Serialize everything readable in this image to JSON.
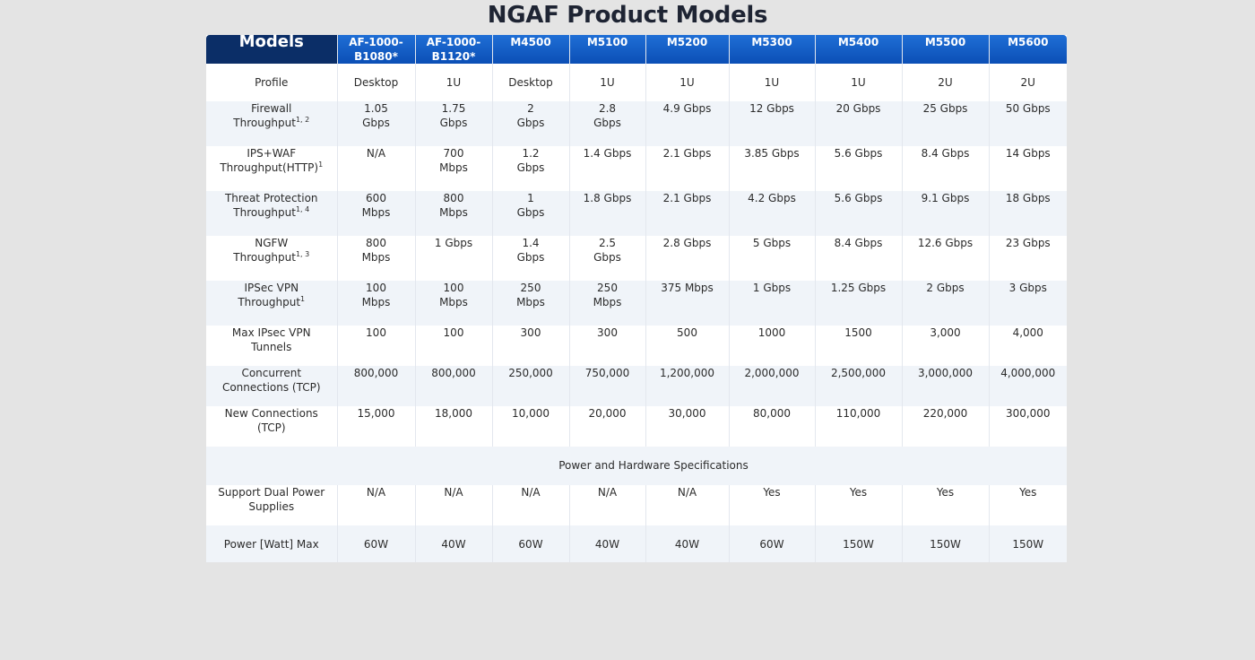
{
  "title": "NGAF Product Models",
  "table": {
    "header_label": "Models",
    "models": [
      [
        "AF-1000-",
        "B1080*"
      ],
      [
        "AF-1000-",
        "B1120*"
      ],
      [
        "M4500"
      ],
      [
        "M5100"
      ],
      [
        "M5200"
      ],
      [
        "M5300"
      ],
      [
        "M5400"
      ],
      [
        "M5500"
      ],
      [
        "M5600"
      ]
    ],
    "rows": {
      "profile": {
        "label": "Profile",
        "values": [
          "Desktop",
          "1U",
          "Desktop",
          "1U",
          "1U",
          "1U",
          "1U",
          "2U",
          "2U"
        ]
      },
      "firewall": {
        "label1": "Firewall",
        "label2": "Throughput",
        "sup": "1, 2",
        "values": [
          [
            "1.05",
            "Gbps"
          ],
          [
            "1.75",
            "Gbps"
          ],
          [
            "2",
            "Gbps"
          ],
          [
            "2.8",
            "Gbps"
          ],
          [
            "4.9 Gbps"
          ],
          [
            "12 Gbps"
          ],
          [
            "20 Gbps"
          ],
          [
            "25 Gbps"
          ],
          [
            "50 Gbps"
          ]
        ]
      },
      "ips_waf": {
        "label1": "IPS+WAF",
        "label2": "Throughput(HTTP)",
        "sup": "1",
        "values": [
          [
            "N/A"
          ],
          [
            "700",
            "Mbps"
          ],
          [
            "1.2",
            "Gbps"
          ],
          [
            "1.4 Gbps"
          ],
          [
            "2.1 Gbps"
          ],
          [
            "3.85 Gbps"
          ],
          [
            "5.6 Gbps"
          ],
          [
            "8.4 Gbps"
          ],
          [
            "14 Gbps"
          ]
        ]
      },
      "threat": {
        "label1": "Threat Protection",
        "label2": "Throughput",
        "sup": "1, 4",
        "values": [
          [
            "600",
            "Mbps"
          ],
          [
            "800",
            "Mbps"
          ],
          [
            "1",
            "Gbps"
          ],
          [
            "1.8 Gbps"
          ],
          [
            "2.1 Gbps"
          ],
          [
            "4.2 Gbps"
          ],
          [
            "5.6 Gbps"
          ],
          [
            "9.1 Gbps"
          ],
          [
            "18 Gbps"
          ]
        ]
      },
      "ngfw": {
        "label1": "NGFW",
        "label2": "Throughput",
        "sup": "1, 3",
        "values": [
          [
            "800",
            "Mbps"
          ],
          [
            "1 Gbps"
          ],
          [
            "1.4",
            "Gbps"
          ],
          [
            "2.5",
            "Gbps"
          ],
          [
            "2.8 Gbps"
          ],
          [
            "5 Gbps"
          ],
          [
            "8.4 Gbps"
          ],
          [
            "12.6 Gbps"
          ],
          [
            "23 Gbps"
          ]
        ]
      },
      "ipsec": {
        "label1": "IPSec VPN",
        "label2": "Throughput",
        "sup": "1",
        "values": [
          [
            "100",
            "Mbps"
          ],
          [
            "100",
            "Mbps"
          ],
          [
            "250",
            "Mbps"
          ],
          [
            "250",
            "Mbps"
          ],
          [
            "375 Mbps"
          ],
          [
            "1 Gbps"
          ],
          [
            "1.25 Gbps"
          ],
          [
            "2 Gbps"
          ],
          [
            "3 Gbps"
          ]
        ]
      },
      "tunnels": {
        "label1": "Max IPsec VPN",
        "label2": "Tunnels",
        "values": [
          "100",
          "100",
          "300",
          "300",
          "500",
          "1000",
          "1500",
          "3,000",
          "4,000"
        ]
      },
      "concurrent": {
        "label1": "Concurrent",
        "label2": "Connections (TCP)",
        "values": [
          "800,000",
          "800,000",
          "250,000",
          "750,000",
          "1,200,000",
          "2,000,000",
          "2,500,000",
          "3,000,000",
          "4,000,000"
        ]
      },
      "new_conn": {
        "label1": "New Connections",
        "label2": "(TCP)",
        "values": [
          "15,000",
          "18,000",
          "10,000",
          "20,000",
          "30,000",
          "80,000",
          "110,000",
          "220,000",
          "300,000"
        ]
      },
      "section": {
        "label": "Power and Hardware Specifications"
      },
      "dual_power": {
        "label1": "Support Dual Power",
        "label2": "Supplies",
        "values": [
          "N/A",
          "N/A",
          "N/A",
          "N/A",
          "N/A",
          "Yes",
          "Yes",
          "Yes",
          "Yes"
        ]
      },
      "power_max": {
        "label": "Power [Watt] Max",
        "values": [
          "60W",
          "40W",
          "60W",
          "40W",
          "40W",
          "60W",
          "150W",
          "150W",
          "150W"
        ]
      }
    }
  },
  "colors": {
    "header_dark": "#0b2e67",
    "header_blue": "#1565c8",
    "row_alt": "#f0f4f9",
    "background": "#e4e4e4"
  }
}
